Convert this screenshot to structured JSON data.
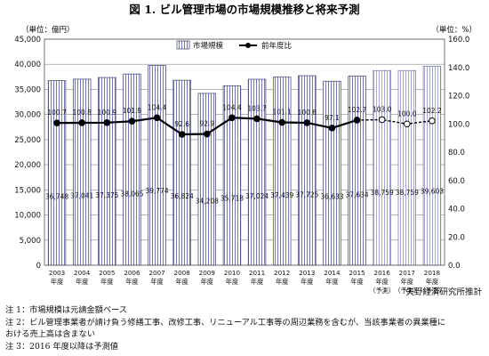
{
  "chart_data": {
    "type": "bar",
    "title": "図 1. ビル管理市場の市場規模推移と将来予測",
    "left_unit": "（単位：億円）",
    "right_unit": "（単位：%）",
    "categories": [
      {
        "year": "2003",
        "label": "年度",
        "forecast": ""
      },
      {
        "year": "2004",
        "label": "年度",
        "forecast": ""
      },
      {
        "year": "2005",
        "label": "年度",
        "forecast": ""
      },
      {
        "year": "2006",
        "label": "年度",
        "forecast": ""
      },
      {
        "year": "2007",
        "label": "年度",
        "forecast": ""
      },
      {
        "year": "2008",
        "label": "年度",
        "forecast": ""
      },
      {
        "year": "2009",
        "label": "年度",
        "forecast": ""
      },
      {
        "year": "2010",
        "label": "年度",
        "forecast": ""
      },
      {
        "year": "2011",
        "label": "年度",
        "forecast": ""
      },
      {
        "year": "2012",
        "label": "年度",
        "forecast": ""
      },
      {
        "year": "2013",
        "label": "年度",
        "forecast": ""
      },
      {
        "year": "2014",
        "label": "年度",
        "forecast": ""
      },
      {
        "year": "2015",
        "label": "年度",
        "forecast": ""
      },
      {
        "year": "2016",
        "label": "年度",
        "forecast": "（予測）"
      },
      {
        "year": "2017",
        "label": "年度",
        "forecast": "（予測）"
      },
      {
        "year": "2018",
        "label": "年度",
        "forecast": "（予測）"
      }
    ],
    "series": [
      {
        "name": "市場規模",
        "type": "bar",
        "axis": "left",
        "values": [
          36748,
          37041,
          37375,
          38065,
          39774,
          36824,
          34208,
          35718,
          37024,
          37439,
          37725,
          36633,
          37634,
          38759,
          38759,
          39603
        ],
        "labels": [
          "36,748",
          "37,041",
          "37,375",
          "38,065",
          "39,774",
          "36,824",
          "34,208",
          "35,718",
          "37,024",
          "37,439",
          "37,725",
          "36,633",
          "37,634",
          "38,759",
          "38,759",
          "39,603"
        ]
      },
      {
        "name": "前年度比",
        "type": "line",
        "axis": "right",
        "values": [
          100.7,
          100.8,
          100.9,
          101.9,
          104.4,
          92.6,
          92.9,
          104.4,
          103.7,
          101.1,
          100.8,
          97.1,
          102.7,
          103.0,
          100.0,
          102.2
        ],
        "labels": [
          "100.7",
          "100.8",
          "100.9",
          "101.9",
          "104.4",
          "92.6",
          "92.9",
          "104.4",
          "103.7",
          "101.1",
          "100.8",
          "97.1",
          "102.7",
          "103.0",
          "100.0",
          "102.2"
        ]
      }
    ],
    "forecast_from_index": 13,
    "ylim": [
      0,
      45000
    ],
    "yticks": [
      "0",
      "5,000",
      "10,000",
      "15,000",
      "20,000",
      "25,000",
      "30,000",
      "35,000",
      "40,000",
      "45,000"
    ],
    "y2lim": [
      0,
      160
    ],
    "y2ticks": [
      "0.0",
      "20.0",
      "40.0",
      "60.0",
      "80.0",
      "100.0",
      "120.0",
      "140.0",
      "160.0"
    ],
    "legend_position": "top-center",
    "grid": "horizontal"
  },
  "credit": "矢野経済研究所推計",
  "notes": [
    "注 1：市場規模は元請金額ベース",
    "注 2：ビル管理事業者が請け負う修繕工事、改修工事、リニューアル工事等の周辺業務を含むが、当該事業者の異業種に",
    "おける売上高は含まない",
    "注 3：2016 年度以降は予測値"
  ]
}
